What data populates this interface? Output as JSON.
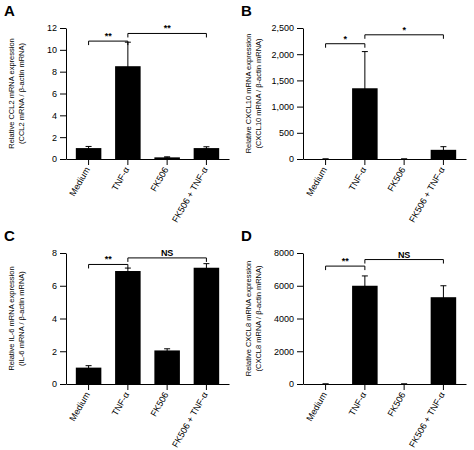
{
  "chart_data": [
    {
      "type": "bar",
      "title": "A",
      "ylabel": [
        "Relative CCL2 mRNA expression",
        "(CCL2 mRNA / β-actin mRNA)"
      ],
      "categories": [
        "Medium",
        "TNF-α",
        "FK506",
        "FK506 + TNF-α"
      ],
      "values": [
        1.0,
        8.5,
        0.15,
        1.0
      ],
      "errors": [
        0.15,
        2.2,
        0.05,
        0.12
      ],
      "color": "#000000",
      "ylim": [
        0,
        12
      ],
      "yticks": [
        0,
        2,
        4,
        6,
        8,
        10,
        12
      ],
      "grid": false,
      "annotations": [
        {
          "x1": "Medium",
          "x2": "TNF-α",
          "y": 10.8,
          "label": "**"
        },
        {
          "x1": "TNF-α",
          "x2": "FK506 + TNF-α",
          "y": 11.5,
          "label": "**"
        }
      ]
    },
    {
      "type": "bar",
      "title": "B",
      "ylabel": [
        "Relative CXCL10 mRNA expression",
        "(CXCL10 mRNA / β-actin mRNA)"
      ],
      "categories": [
        "Medium",
        "TNF-α",
        "FK506",
        "FK506 + TNF-α"
      ],
      "values": [
        0,
        1350,
        0,
        175
      ],
      "errors": [
        0,
        700,
        0,
        60
      ],
      "color": "#000000",
      "ylim": [
        0,
        2500
      ],
      "yticks": [
        0,
        500,
        {
          "value": 1000,
          "label": "1,000"
        },
        {
          "value": 1500,
          "label": "1,500"
        },
        {
          "value": 2000,
          "label": "2,000"
        },
        {
          "value": 2500,
          "label": "2,500"
        }
      ],
      "grid": false,
      "annotations": [
        {
          "x1": "Medium",
          "x2": "TNF-α",
          "y": 2200,
          "label": "*"
        },
        {
          "x1": "TNF-α",
          "x2": "FK506 + TNF-α",
          "y": 2370,
          "label": "*"
        }
      ]
    },
    {
      "type": "bar",
      "title": "C",
      "ylabel": [
        "Relative IL-6 mRNA expression",
        "(IL-6 mRNA / β-actin mRNA)"
      ],
      "categories": [
        "Medium",
        "TNF-α",
        "FK506",
        "FK506 + TNF-α"
      ],
      "values": [
        1.0,
        6.9,
        2.05,
        7.1
      ],
      "errors": [
        0.12,
        0.18,
        0.1,
        0.25
      ],
      "color": "#000000",
      "ylim": [
        0,
        8
      ],
      "yticks": [
        0,
        2,
        4,
        6,
        8
      ],
      "grid": false,
      "annotations": [
        {
          "x1": "Medium",
          "x2": "TNF-α",
          "y": 7.3,
          "label": "**"
        },
        {
          "x1": "TNF-α",
          "x2": "FK506 + TNF-α",
          "y": 7.7,
          "label": "NS"
        }
      ]
    },
    {
      "type": "bar",
      "title": "D",
      "ylabel": [
        "Relative CXCL8 mRNA expression",
        "(CXCL8 mRNA / β-actin mRNA)"
      ],
      "categories": [
        "Medium",
        "TNF-α",
        "FK506",
        "FK506 + TNF-α"
      ],
      "values": [
        0,
        6000,
        0,
        5300
      ],
      "errors": [
        0,
        600,
        0,
        700
      ],
      "color": "#000000",
      "ylim": [
        0,
        8000
      ],
      "yticks": [
        0,
        2000,
        4000,
        6000,
        8000
      ],
      "grid": false,
      "annotations": [
        {
          "x1": "Medium",
          "x2": "TNF-α",
          "y": 7200,
          "label": "**"
        },
        {
          "x1": "TNF-α",
          "x2": "FK506 + TNF-α",
          "y": 7600,
          "label": "NS"
        }
      ]
    }
  ]
}
